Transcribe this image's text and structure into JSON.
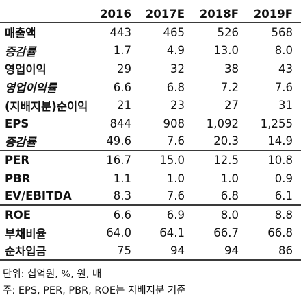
{
  "header": [
    "2016",
    "2017E",
    "2018F",
    "2019F"
  ],
  "rows": [
    {
      "label": "매출액",
      "style": "bold",
      "values": [
        "443",
        "465",
        "526",
        "568"
      ]
    },
    {
      "label": "증감률",
      "style": "italic",
      "values": [
        "1.7",
        "4.9",
        "13.0",
        "8.0"
      ]
    },
    {
      "label": "영업이익",
      "style": "bold",
      "values": [
        "29",
        "32",
        "38",
        "43"
      ]
    },
    {
      "label": "영업이익률",
      "style": "italic",
      "values": [
        "6.6",
        "6.8",
        "7.2",
        "7.6"
      ]
    },
    {
      "label": "(지배지분)순이익",
      "style": "bold",
      "values": [
        "21",
        "23",
        "27",
        "31"
      ]
    },
    {
      "label": "EPS",
      "style": "bold",
      "values": [
        "844",
        "908",
        "1,092",
        "1,255"
      ]
    },
    {
      "label": "증감률",
      "style": "italic",
      "values": [
        "49.6",
        "7.6",
        "20.3",
        "14.9"
      ]
    },
    {
      "label": "PER",
      "style": "bold",
      "values": [
        "16.7",
        "15.0",
        "12.5",
        "10.8"
      ]
    },
    {
      "label": "PBR",
      "style": "bold",
      "values": [
        "1.1",
        "1.0",
        "1.0",
        "0.9"
      ]
    },
    {
      "label": "EV/EBITDA",
      "style": "bold",
      "values": [
        "8.3",
        "7.6",
        "6.8",
        "6.1"
      ]
    },
    {
      "label": "ROE",
      "style": "bold",
      "values": [
        "6.6",
        "6.9",
        "8.0",
        "8.8"
      ]
    },
    {
      "label": "부채비율",
      "style": "bold",
      "values": [
        "64.0",
        "64.1",
        "66.7",
        "66.8"
      ]
    },
    {
      "label": "순차입금",
      "style": "bold",
      "values": [
        "75",
        "94",
        "94",
        "86"
      ]
    }
  ],
  "notes": {
    "unit": "단위: 십억원, %, 원, 배",
    "basis": "주: EPS, PER, PBR, ROE는 지배지분 기준"
  }
}
